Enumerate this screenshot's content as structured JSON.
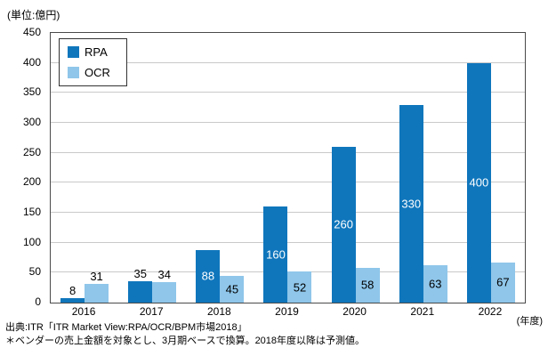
{
  "unit_label": "(単位:億円)",
  "year_axis_note": "(年度)",
  "source": {
    "line1": "出典:ITR「ITR Market View:RPA/OCR/BPM市場2018」",
    "line2": "＊ベンダーの売上金額を対象とし、3月期ベースで換算。2018年度以降は予測値。"
  },
  "colors": {
    "rpa": "#0f76bc",
    "ocr": "#8fc6ea",
    "grid": "#c9c9c9",
    "plot_border": "#4a4a4a"
  },
  "chart_data": {
    "type": "bar",
    "title": "",
    "xlabel": "(年度)",
    "ylabel": "(単位:億円)",
    "categories": [
      "2016",
      "2017",
      "2018",
      "2019",
      "2020",
      "2021",
      "2022"
    ],
    "series": [
      {
        "name": "RPA",
        "color": "#0f76bc",
        "values": [
          8,
          35,
          88,
          160,
          260,
          330,
          400
        ],
        "label_color_inside": "#ffffff"
      },
      {
        "name": "OCR",
        "color": "#8fc6ea",
        "values": [
          31,
          34,
          45,
          52,
          58,
          63,
          67
        ],
        "label_color_inside": "#000000"
      }
    ],
    "ylim": [
      0,
      450
    ],
    "ytick_step": 50,
    "grid": true,
    "legend_position": "top-left",
    "label_inside_threshold": 45
  }
}
